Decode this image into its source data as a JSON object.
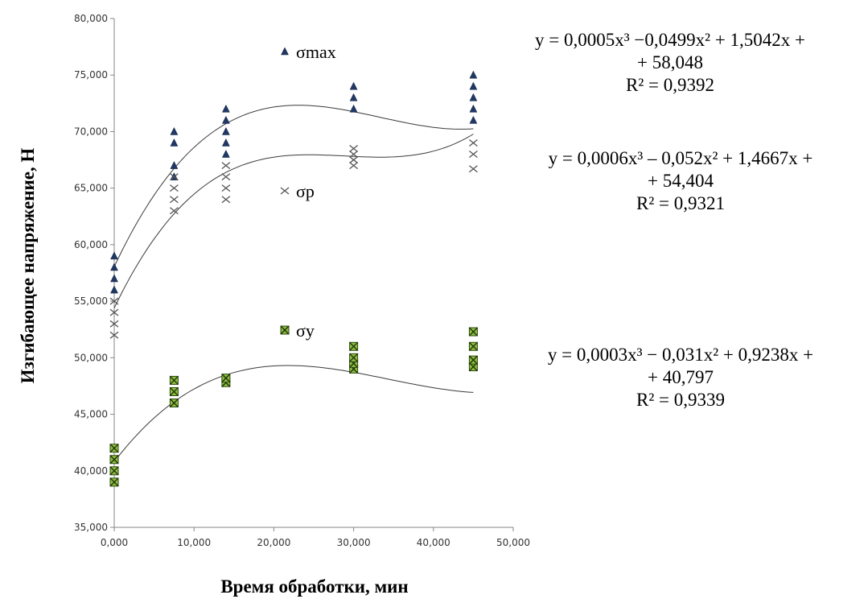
{
  "chart_data": {
    "type": "scatter",
    "title": "",
    "xlabel": "Время обработки, мин",
    "ylabel": "Изгибающее напряжение, Н",
    "xlim": [
      0,
      50
    ],
    "ylim": [
      35,
      80
    ],
    "x_ticks": [
      "0,000",
      "10,000",
      "20,000",
      "30,000",
      "40,000",
      "50,000"
    ],
    "y_ticks": [
      "35,000",
      "40,000",
      "45,000",
      "50,000",
      "55,000",
      "60,000",
      "65,000",
      "70,000",
      "75,000",
      "80,000"
    ],
    "grid": false,
    "series": [
      {
        "name": "σmax",
        "marker": "triangle",
        "color": "#1f3864",
        "points": [
          [
            0,
            56
          ],
          [
            0,
            57
          ],
          [
            0,
            58
          ],
          [
            0,
            59
          ],
          [
            7.5,
            66
          ],
          [
            7.5,
            67
          ],
          [
            7.5,
            69
          ],
          [
            7.5,
            70
          ],
          [
            14,
            68
          ],
          [
            14,
            69
          ],
          [
            14,
            70
          ],
          [
            14,
            71
          ],
          [
            14,
            72
          ],
          [
            30,
            72
          ],
          [
            30,
            73
          ],
          [
            30,
            74
          ],
          [
            45,
            71
          ],
          [
            45,
            72
          ],
          [
            45,
            73
          ],
          [
            45,
            74
          ],
          [
            45,
            75
          ]
        ],
        "trendline": {
          "coefficients": [
            0.0005,
            -0.0499,
            1.5042,
            58.048
          ],
          "equation_lines": [
            "y = 0,0005x³ −0,0499x² + 1,5042x +",
            "+ 58,048",
            "R² = 0,9392"
          ]
        }
      },
      {
        "name": "σp",
        "marker": "x",
        "color": "#555555",
        "points": [
          [
            0,
            52
          ],
          [
            0,
            53
          ],
          [
            0,
            54
          ],
          [
            0,
            55
          ],
          [
            7.5,
            63
          ],
          [
            7.5,
            64
          ],
          [
            7.5,
            65
          ],
          [
            7.5,
            66
          ],
          [
            14,
            64
          ],
          [
            14,
            65
          ],
          [
            14,
            66
          ],
          [
            14,
            67
          ],
          [
            30,
            67
          ],
          [
            30,
            67.5
          ],
          [
            30,
            68
          ],
          [
            30,
            68.5
          ],
          [
            45,
            66.7
          ],
          [
            45,
            68
          ],
          [
            45,
            69
          ]
        ],
        "trendline": {
          "coefficients": [
            0.0006,
            -0.052,
            1.4667,
            54.404
          ],
          "equation_lines": [
            "y = 0,0006x³ – 0,052x² + 1,4667x +",
            "+ 54,404",
            "R² = 0,9321"
          ]
        }
      },
      {
        "name": "σy",
        "marker": "square-x",
        "color": "#4a6b1e",
        "points": [
          [
            0,
            39
          ],
          [
            0,
            40
          ],
          [
            0,
            41
          ],
          [
            0,
            42
          ],
          [
            7.5,
            46
          ],
          [
            7.5,
            47
          ],
          [
            7.5,
            48
          ],
          [
            14,
            47.8
          ],
          [
            14,
            48.2
          ],
          [
            30,
            49
          ],
          [
            30,
            49.5
          ],
          [
            30,
            50
          ],
          [
            30,
            51
          ],
          [
            45,
            49.2
          ],
          [
            45,
            49.8
          ],
          [
            45,
            51
          ],
          [
            45,
            52.3
          ]
        ],
        "trendline": {
          "coefficients": [
            0.0003,
            -0.031,
            0.9238,
            40.797
          ],
          "equation_lines": [
            "y = 0,0003x³ − 0,031x² + 0,9238x +",
            "+ 40,797",
            "R² = 0,9339"
          ]
        }
      }
    ]
  }
}
